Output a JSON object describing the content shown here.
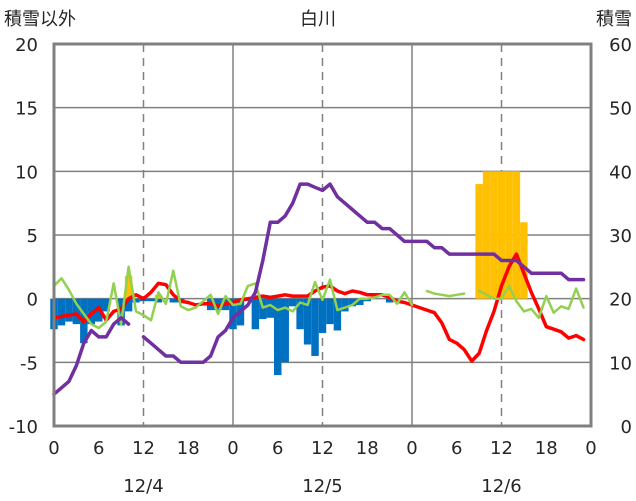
{
  "chart_data": {
    "type": "bar+line",
    "title": "白川",
    "ylabel_left": "積雪以外",
    "ylabel_right": "積雪",
    "ylim_left": [
      -10,
      20
    ],
    "yticks_left": [
      "-10",
      "-5",
      "0",
      "5",
      "10",
      "15",
      "20"
    ],
    "ylim_right": [
      0,
      60
    ],
    "yticks_right": [
      "0",
      "10",
      "20",
      "30",
      "40",
      "50",
      "60"
    ],
    "xlim_hours": [
      0,
      72
    ],
    "xtick_labels": [
      "0",
      "6",
      "12",
      "18",
      "0",
      "6",
      "12",
      "18",
      "0",
      "6",
      "12",
      "18",
      "0"
    ],
    "date_labels": [
      {
        "label": "12/4",
        "hour": 12
      },
      {
        "label": "12/5",
        "hour": 36
      },
      {
        "label": "12/6",
        "hour": 60
      }
    ],
    "grid": {
      "vertical_solid_hours": [
        24,
        48
      ],
      "vertical_dashed_hours": [
        12,
        36,
        60
      ],
      "horizontal": true
    },
    "colors": {
      "precip_bar": "#0070C0",
      "snowfall_bar": "#FFC000",
      "red_line": "#FF0000",
      "green_line": "#92D050",
      "purple_line": "#7030A0",
      "frame": "#808080"
    },
    "series": [
      {
        "kind": "bar",
        "axis": "left",
        "color": "#0070C0",
        "x": [
          0,
          1,
          2,
          3,
          4,
          5,
          6,
          7,
          9,
          10,
          11,
          12,
          13,
          14,
          16,
          17,
          21,
          22,
          23,
          24,
          25,
          26,
          27,
          28,
          29,
          30,
          31,
          32,
          33,
          34,
          35,
          36,
          37,
          38,
          39,
          40,
          41,
          42,
          45
        ],
        "values": [
          -2.4,
          -2.1,
          -1.8,
          -2.0,
          -3.5,
          -2.0,
          -1.8,
          -1.0,
          -2.1,
          -1.0,
          -0.3,
          -0.2,
          -0.2,
          -0.3,
          -0.3,
          -0.3,
          -0.9,
          -0.9,
          -0.9,
          -2.4,
          -2.1,
          -0.2,
          -2.4,
          -1.6,
          -1.5,
          -6.0,
          -5.0,
          -0.6,
          -2.4,
          -3.6,
          -4.5,
          -2.7,
          -2.0,
          -2.5,
          -1.0,
          -0.6,
          -0.5,
          -0.2,
          -0.3
        ]
      },
      {
        "kind": "bar",
        "axis": "left",
        "color": "#FFC000",
        "x": [
          10,
          14,
          57,
          58,
          59,
          60,
          61,
          62,
          63
        ],
        "values": [
          1.8,
          0.3,
          9.0,
          10.0,
          10.0,
          10.0,
          10.0,
          10.0,
          6.0
        ]
      },
      {
        "kind": "line",
        "axis": "left",
        "color": "#FF0000",
        "x": [
          0,
          1,
          2,
          3,
          4,
          5,
          6,
          7,
          8,
          9,
          10,
          11,
          12,
          13,
          14,
          15,
          16,
          17,
          18,
          19,
          20,
          21,
          22,
          23,
          24,
          25,
          26,
          27,
          28,
          29,
          30,
          31,
          32,
          33,
          34,
          35,
          36,
          37,
          38,
          39,
          40,
          41,
          42,
          43,
          44,
          45,
          46,
          47,
          48,
          49,
          50,
          51,
          52,
          53,
          54,
          55,
          56,
          57,
          58,
          59,
          60,
          61,
          62,
          63,
          64,
          65,
          66,
          67,
          68,
          69,
          70,
          71
        ],
        "values": [
          -1.5,
          -1.4,
          -1.3,
          -1.2,
          -1.8,
          -1.2,
          -0.7,
          -1.7,
          -1.0,
          -0.8,
          0.0,
          0.3,
          0.0,
          0.5,
          1.2,
          1.1,
          0.3,
          -0.2,
          -0.3,
          -0.5,
          -0.4,
          -0.4,
          -0.6,
          -0.4,
          -0.3,
          -0.1,
          0.0,
          0.1,
          0.2,
          0.1,
          0.2,
          0.3,
          0.2,
          0.2,
          0.2,
          0.6,
          0.9,
          1.0,
          0.6,
          0.4,
          0.6,
          0.5,
          0.3,
          0.3,
          0.3,
          0.1,
          -0.2,
          -0.3,
          -0.5,
          -0.7,
          -0.9,
          -1.1,
          -1.9,
          -3.2,
          -3.5,
          -4.0,
          -4.9,
          -4.3,
          -2.5,
          -1.0,
          1.0,
          2.5,
          3.5,
          2.0,
          0.5,
          -0.8,
          -2.2,
          -2.4,
          -2.6,
          -3.1,
          -2.9,
          -3.2
        ]
      },
      {
        "kind": "line",
        "axis": "left",
        "color": "#92D050",
        "x": [
          0,
          1,
          2,
          3,
          4,
          5,
          6,
          7,
          8,
          9,
          10,
          11,
          12,
          13,
          14,
          15,
          16,
          17,
          18,
          19,
          20,
          21,
          22,
          23,
          24,
          25,
          26,
          27,
          28,
          29,
          30,
          31,
          32,
          33,
          34,
          35,
          36,
          37,
          38,
          39,
          40,
          41,
          42,
          43,
          44,
          45,
          46,
          47,
          48
        ],
        "values": [
          1.0,
          1.6,
          0.7,
          -0.4,
          -1.2,
          -2.0,
          -2.3,
          -1.8,
          1.2,
          -2.0,
          2.5,
          -1.0,
          -1.3,
          -1.7,
          0.5,
          -0.4,
          2.2,
          -0.6,
          -0.9,
          -0.7,
          -0.2,
          0.3,
          -1.2,
          0.2,
          -0.5,
          -0.4,
          1.0,
          1.2,
          -0.7,
          -0.5,
          -0.9,
          -0.7,
          -1.0,
          -0.3,
          -0.5,
          1.3,
          -0.1,
          1.5,
          -0.9,
          -0.7,
          -0.5,
          0.0,
          0.0,
          0.1,
          0.3,
          0.3,
          -0.4,
          0.5,
          -0.5
        ]
      },
      {
        "kind": "line",
        "axis": "left",
        "color": "#92D050",
        "x": [
          50,
          51,
          52,
          53,
          54,
          55
        ],
        "values": [
          0.6,
          0.4,
          0.3,
          0.2,
          0.3,
          0.4
        ]
      },
      {
        "kind": "line",
        "axis": "left",
        "color": "#92D050",
        "x": [
          57,
          58,
          59,
          60,
          61,
          62,
          63,
          64,
          65,
          66,
          67,
          68,
          69,
          70,
          71
        ],
        "values": [
          0.6,
          0.3,
          0.0,
          0.0,
          1.0,
          -0.2,
          -1.0,
          -0.8,
          -1.5,
          0.2,
          -1.1,
          -0.6,
          -0.8,
          0.8,
          -0.7
        ]
      },
      {
        "kind": "line",
        "axis": "right",
        "color": "#7030A0",
        "x": [
          0,
          1,
          2,
          3,
          4,
          5,
          6,
          7,
          8,
          9,
          10
        ],
        "values": [
          5,
          6,
          7,
          9.5,
          13,
          15,
          14,
          14,
          16,
          17,
          16
        ]
      },
      {
        "kind": "line",
        "axis": "right",
        "color": "#7030A0",
        "x": [
          12,
          13,
          14,
          15,
          16,
          17,
          18,
          19,
          20,
          21,
          22,
          23,
          24,
          25,
          26,
          27,
          28,
          29,
          30,
          31,
          32,
          33,
          34,
          35,
          36,
          37,
          38,
          39,
          40,
          41,
          42,
          43,
          44,
          45,
          46,
          47,
          48,
          49,
          50,
          51,
          52,
          53,
          54,
          55,
          56,
          57,
          58,
          59,
          60,
          61,
          62,
          63,
          64,
          65,
          66,
          67,
          68,
          69,
          70,
          71
        ],
        "values": [
          14,
          13,
          12,
          11,
          11,
          10,
          10,
          10,
          10,
          11,
          14,
          15,
          17,
          18,
          19,
          21,
          26,
          32,
          32,
          33,
          35,
          38,
          38,
          37.5,
          37,
          38,
          36,
          35,
          34,
          33,
          32,
          32,
          31,
          31,
          30,
          29,
          29,
          29,
          29,
          28,
          28,
          27,
          27,
          27,
          27,
          27,
          27,
          27,
          26,
          26,
          26,
          25,
          24,
          24,
          24,
          24,
          24,
          23,
          23,
          23
        ]
      }
    ]
  }
}
